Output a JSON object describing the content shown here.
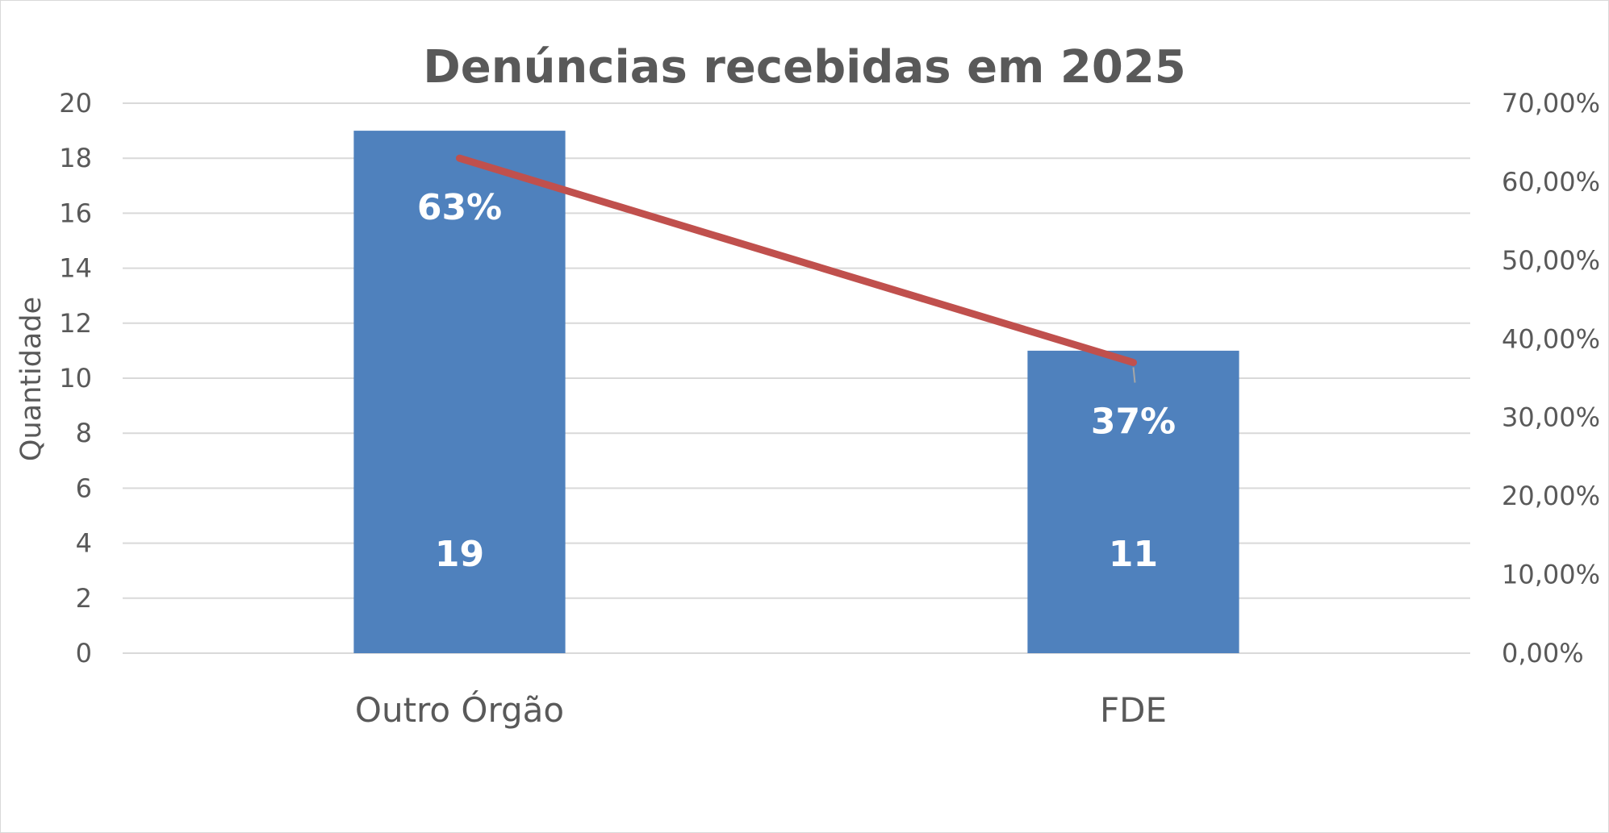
{
  "chart_data": {
    "type": "bar",
    "title": "Denúncias recebidas em 2025",
    "xlabel": "",
    "ylabel": "Quantidade",
    "categories": [
      "Outro Órgão",
      "FDE"
    ],
    "series": [
      {
        "type": "bar",
        "axis": "primary",
        "values": [
          19,
          11
        ],
        "value_labels": [
          "19",
          "11"
        ],
        "color": "#4f81bd"
      },
      {
        "type": "line",
        "axis": "secondary",
        "values": [
          0.63,
          0.37
        ],
        "value_labels": [
          "63%",
          "37%"
        ],
        "color": "#c0504d"
      }
    ],
    "ylim": [
      0,
      20
    ],
    "yticks": [
      0,
      2,
      4,
      6,
      8,
      10,
      12,
      14,
      16,
      18,
      20
    ],
    "y2lim": [
      0,
      0.7
    ],
    "y2ticks": [
      "0,00%",
      "10,00%",
      "20,00%",
      "30,00%",
      "40,00%",
      "50,00%",
      "60,00%",
      "70,00%"
    ],
    "grid": true,
    "legend": "none"
  }
}
